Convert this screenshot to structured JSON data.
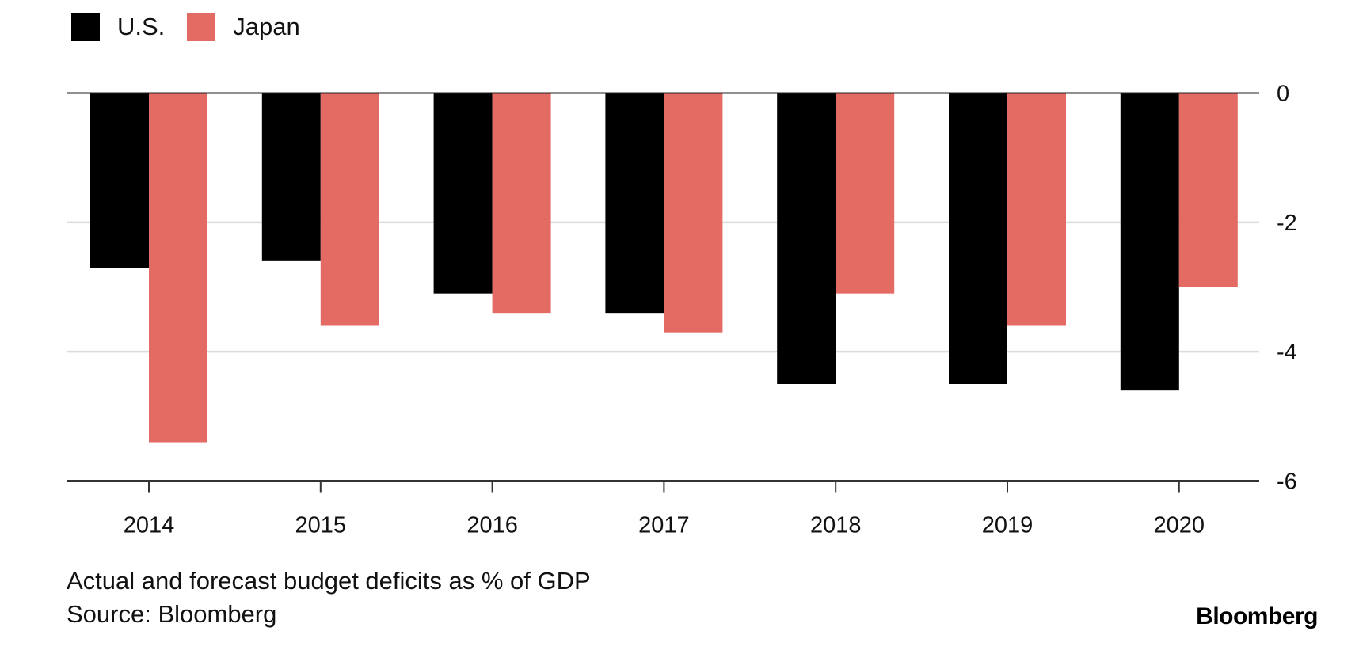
{
  "legend": {
    "items": [
      {
        "label": "U.S.",
        "color": "#000000"
      },
      {
        "label": "Japan",
        "color": "#E46A64"
      }
    ]
  },
  "caption": {
    "description": "Actual and forecast budget deficits as % of GDP",
    "source": "Source: Bloomberg"
  },
  "brand": "Bloomberg",
  "chart_data": {
    "type": "bar",
    "title": "",
    "xlabel": "",
    "ylabel": "",
    "categories": [
      "2014",
      "2015",
      "2016",
      "2017",
      "2018",
      "2019",
      "2020"
    ],
    "series": [
      {
        "name": "U.S.",
        "color": "#000000",
        "values": [
          -2.7,
          -2.6,
          -3.1,
          -3.4,
          -4.5,
          -4.5,
          -4.6
        ]
      },
      {
        "name": "Japan",
        "color": "#E46A64",
        "values": [
          -5.4,
          -3.6,
          -3.4,
          -3.7,
          -3.1,
          -3.6,
          -3.0
        ]
      }
    ],
    "ylim": [
      -6,
      0
    ],
    "yticks": [
      0,
      -2,
      -4,
      -6
    ],
    "ytick_labels": [
      "0",
      "-2",
      "-4",
      "-6"
    ],
    "y_axis_position": "right",
    "grid": true,
    "legend_position": "top-left"
  }
}
